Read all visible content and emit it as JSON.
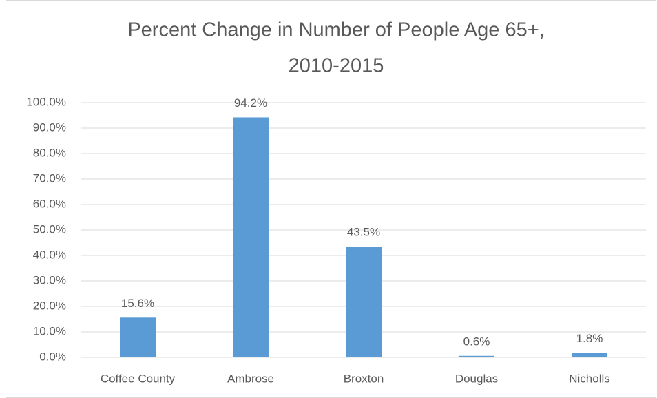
{
  "chart_data": {
    "type": "bar",
    "title": [
      "Percent Change in Number of People Age 65+,",
      "2010-2015"
    ],
    "categories": [
      "Coffee County",
      "Ambrose",
      "Broxton",
      "Douglas",
      "Nicholls"
    ],
    "values": [
      15.6,
      94.2,
      43.5,
      0.6,
      1.8
    ],
    "value_labels": [
      "15.6%",
      "94.2%",
      "43.5%",
      "0.6%",
      "1.8%"
    ],
    "color": "#5b9bd5",
    "ylim": [
      0,
      100
    ],
    "yticks": [
      {
        "value": 0,
        "label": "0.0%"
      },
      {
        "value": 10,
        "label": "10.0%"
      },
      {
        "value": 20,
        "label": "20.0%"
      },
      {
        "value": 30,
        "label": "30.0%"
      },
      {
        "value": 40,
        "label": "40.0%"
      },
      {
        "value": 50,
        "label": "50.0%"
      },
      {
        "value": 60,
        "label": "60.0%"
      },
      {
        "value": 70,
        "label": "70.0%"
      },
      {
        "value": 80,
        "label": "80.0%"
      },
      {
        "value": 90,
        "label": "90.0%"
      },
      {
        "value": 100,
        "label": "100.0%"
      }
    ],
    "grid": true
  }
}
